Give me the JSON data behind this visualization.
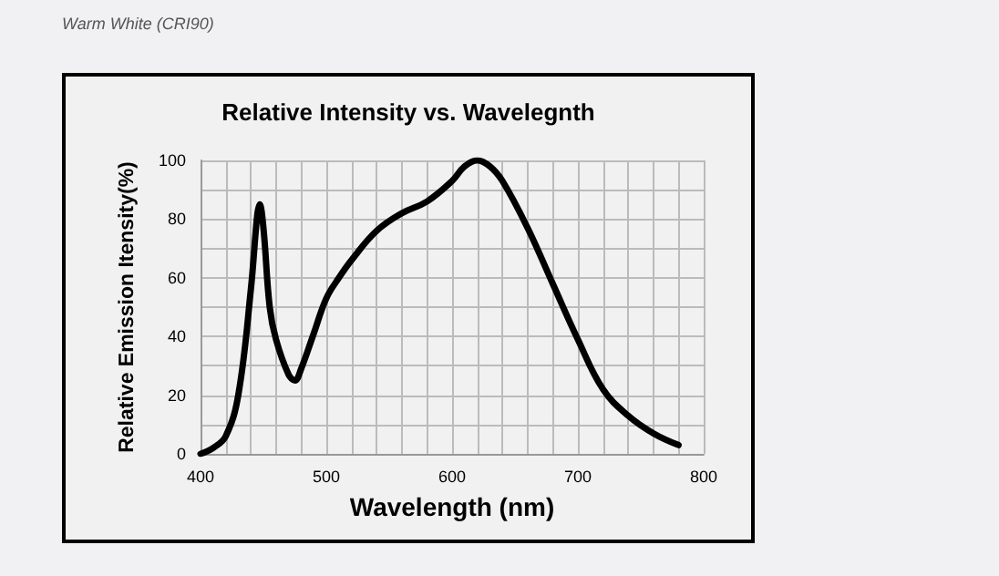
{
  "chart_data": {
    "type": "line",
    "title": "Relative Intensity vs. Wavelegnth",
    "xlabel": "Wavelength (nm)",
    "ylabel": "Relative Emission Itensity(%)",
    "annotations": [
      "Warm White (CRI90)"
    ],
    "x": [
      400,
      410,
      420,
      430,
      440,
      445,
      447,
      450,
      455,
      460,
      470,
      475,
      480,
      490,
      500,
      510,
      520,
      540,
      560,
      580,
      600,
      610,
      620,
      630,
      640,
      660,
      680,
      700,
      720,
      740,
      760,
      780
    ],
    "series": [
      {
        "color": "#000000",
        "values": [
          0,
          2,
          6,
          20,
          56,
          81,
          85,
          77,
          50,
          39,
          27,
          25,
          29,
          41,
          53,
          60,
          66,
          76,
          82,
          86,
          93,
          98,
          100,
          98,
          93,
          77,
          58,
          39,
          22,
          13,
          7,
          3
        ]
      }
    ],
    "xlim": [
      400,
      800
    ],
    "xticks": [
      400,
      {
        "value": 420,
        "label": null
      },
      {
        "value": 440,
        "label": null
      },
      {
        "value": 460,
        "label": null
      },
      {
        "value": 480,
        "label": null
      },
      500,
      {
        "value": 520,
        "label": null
      },
      {
        "value": 540,
        "label": null
      },
      {
        "value": 560,
        "label": null
      },
      {
        "value": 580,
        "label": null
      },
      600,
      {
        "value": 620,
        "label": null
      },
      {
        "value": 640,
        "label": null
      },
      {
        "value": 660,
        "label": null
      },
      {
        "value": 680,
        "label": null
      },
      700,
      {
        "value": 720,
        "label": null
      },
      {
        "value": 740,
        "label": null
      },
      {
        "value": 760,
        "label": null
      },
      {
        "value": 780,
        "label": null
      },
      800
    ],
    "ylim": [
      0,
      100
    ],
    "yticks": [
      0,
      {
        "value": 10,
        "label": null
      },
      20,
      {
        "value": 30,
        "label": null
      },
      40,
      {
        "value": 50,
        "label": null
      },
      60,
      {
        "value": 70,
        "label": null
      },
      80,
      {
        "value": 90,
        "label": null
      },
      100
    ],
    "grid": true,
    "marker": "none",
    "line_style": "solid"
  }
}
